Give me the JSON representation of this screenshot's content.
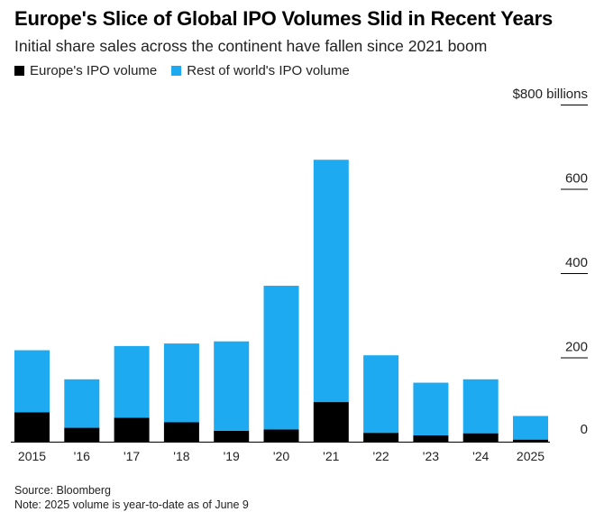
{
  "chart_data": {
    "type": "bar",
    "stacked": true,
    "title": "Europe's Slice of Global IPO Volumes Slid in Recent Years",
    "subtitle": "Initial share sales across the continent have fallen since 2021 boom",
    "categories": [
      "2015",
      "'16",
      "'17",
      "'18",
      "'19",
      "'20",
      "'21",
      "'22",
      "'23",
      "'24",
      "2025"
    ],
    "series": [
      {
        "name": "Europe's IPO volume",
        "color": "#000000",
        "values": [
          70,
          33,
          57,
          46,
          26,
          29,
          94,
          21,
          15,
          20,
          5
        ]
      },
      {
        "name": "Rest of world's IPO volume",
        "color": "#1eaaf1",
        "values": [
          147,
          115,
          170,
          187,
          212,
          341,
          575,
          184,
          125,
          128,
          56
        ]
      }
    ],
    "y_axis": {
      "ylim": [
        0,
        800
      ],
      "ticks": [
        0,
        200,
        400,
        600,
        800
      ],
      "tick_labels": [
        "0",
        "200",
        "400",
        "600",
        "$800 billions"
      ],
      "position": "right"
    },
    "legend_position": "top-left"
  },
  "footer": {
    "source": "Source: Bloomberg",
    "note": "Note: 2025 volume is year-to-date as of June 9"
  }
}
